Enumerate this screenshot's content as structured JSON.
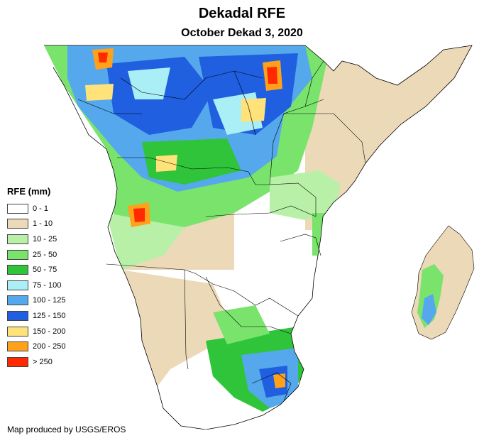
{
  "map": {
    "title": "Dekadal RFE",
    "subtitle": "October Dekad 3, 2020",
    "credit": "Map produced by USGS/EROS"
  },
  "legend": {
    "title": "RFE (mm)",
    "items": [
      {
        "label": "0 - 1",
        "color": "#ffffff"
      },
      {
        "label": "1 - 10",
        "color": "#ecd9b8"
      },
      {
        "label": "10 - 25",
        "color": "#b8f0a8"
      },
      {
        "label": "25 - 50",
        "color": "#79e36c"
      },
      {
        "label": "50 - 75",
        "color": "#2fc43a"
      },
      {
        "label": "75 - 100",
        "color": "#aaeef6"
      },
      {
        "label": "100 - 125",
        "color": "#55a8ec"
      },
      {
        "label": "125 - 150",
        "color": "#1f5fe0"
      },
      {
        "label": "150 - 200",
        "color": "#ffe27a"
      },
      {
        "label": "200 - 250",
        "color": "#ffa11a"
      },
      {
        "label": "> 250",
        "color": "#ff2a00"
      }
    ]
  }
}
